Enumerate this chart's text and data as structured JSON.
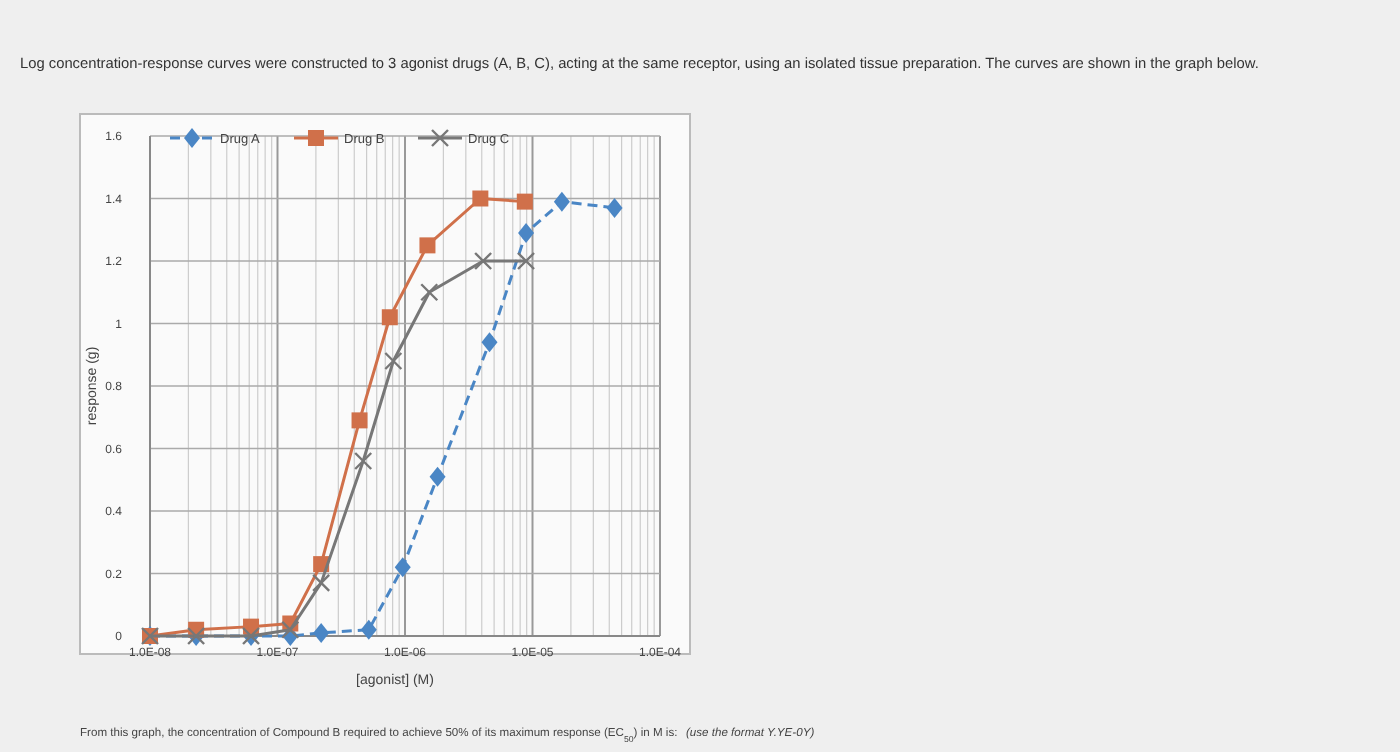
{
  "chart_data": {
    "type": "line",
    "title": "Log concentration-response curves were constructed to 3 agonist drugs (A, B, C), acting at the same receptor, using an isolated tissue preparation.  The curves are shown in the graph below.",
    "xlabel": "[agonist] (M)",
    "ylabel": "response (g)",
    "log": "x",
    "grid": true,
    "legend": "top",
    "xlim": [
      1e-08,
      0.0001
    ],
    "xticks": [
      {
        "value": 1e-08,
        "label": "1.0E-08"
      },
      {
        "value": 1e-07,
        "label": "1.0E-07"
      },
      {
        "value": 1e-06,
        "label": "1.0E-06"
      },
      {
        "value": 1e-05,
        "label": "1.0E-05"
      },
      {
        "value": 0.0001,
        "label": "1.0E-04"
      }
    ],
    "ylim": [
      0,
      1.6
    ],
    "yticks": [
      0,
      0.2,
      0.4,
      0.6,
      0.8,
      1,
      1.2,
      1.4,
      1.6
    ],
    "series": [
      {
        "name": "Drug A",
        "color": "#4a86c5",
        "marker": "diamond",
        "line_style": "dashed",
        "x": [
          1e-08,
          2.3e-08,
          6.2e-08,
          1.26e-07,
          2.2e-07,
          5.2e-07,
          9.6e-07,
          1.8e-06,
          4.6e-06,
          8.9e-06,
          1.7e-05,
          4.4e-05
        ],
        "values": [
          0,
          0,
          0,
          0,
          0.01,
          0.02,
          0.22,
          0.51,
          0.94,
          1.29,
          1.39,
          1.37
        ]
      },
      {
        "name": "Drug B",
        "color": "#d0704a",
        "marker": "square",
        "line_style": "solid",
        "x": [
          1e-08,
          2.3e-08,
          6.2e-08,
          1.26e-07,
          2.2e-07,
          4.4e-07,
          7.6e-07,
          1.5e-06,
          3.9e-06,
          8.7e-06
        ],
        "values": [
          0,
          0.02,
          0.03,
          0.04,
          0.23,
          0.69,
          1.02,
          1.25,
          1.4,
          1.39
        ]
      },
      {
        "name": "Drug C",
        "color": "#777777",
        "marker": "cross",
        "line_style": "solid",
        "x": [
          1e-08,
          2.3e-08,
          6.2e-08,
          1.26e-07,
          2.2e-07,
          4.7e-07,
          8.1e-07,
          1.55e-06,
          4.1e-06,
          8.9e-06
        ],
        "values": [
          0,
          0,
          0,
          0.02,
          0.17,
          0.56,
          0.88,
          1.1,
          1.2,
          1.2
        ]
      }
    ],
    "annotations": [
      "From this graph, the concentration of Compound B required to achieve 50% of its maximum response (EC$_{50}$) in M is:",
      "(use the format Y.YE-0Y)"
    ]
  }
}
